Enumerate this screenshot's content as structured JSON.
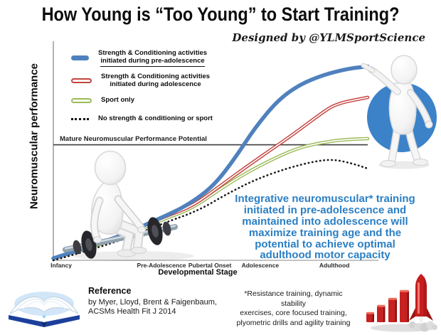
{
  "title": "How Young is “Too Young” to Start Training?",
  "credit": "Designed by @YLMSportScience",
  "legend": {
    "items": [
      {
        "line1": "Strength & Conditioning activities",
        "line2": "initiated during pre-adolescence"
      },
      {
        "line1": "Strength & Conditioning activities",
        "line2": "initiated during adolescence"
      },
      {
        "line1": "Sport only"
      },
      {
        "line1": "No strength & conditioning or sport"
      }
    ]
  },
  "annotation": "Integrative neuromuscular* training\ninitiated in pre-adolescence and\nmaintained into adolescence will\nmaximize training age and the\npotential to achieve optimal\nadulthood motor capacity",
  "footer": {
    "reference_heading": "Reference",
    "reference_text": "by Myer, Lloyd, Brent & Faigenbaum,\nACSMs Health Fit J 2014",
    "footnote": "*Resistance training, dynamic stability\nexercises, core focused training,\nplyometric drills and agility training"
  },
  "colors": {
    "series_blue": "#4f81bd",
    "series_red": "#c4443f",
    "series_green": "#9bbb59",
    "series_dotted": "#1a1a1a",
    "annotation_blue": "#2b7fc4",
    "figure_circle_blue": "#3b82c9",
    "reference_line": "#3c3c3c"
  },
  "chart_data": {
    "type": "line",
    "title": "How Young is “Too Young” to Start Training?",
    "xlabel": "Developmental Stage",
    "ylabel": "Neuromuscular performance",
    "x_categories": [
      "Infancy",
      "Pre-Adolescence",
      "Pubertal Onset",
      "Adolescence",
      "Adulthood"
    ],
    "x_positions": [
      2.5,
      34.4,
      49.8,
      65.8,
      89.4
    ],
    "xlim": [
      0,
      100
    ],
    "ylim": [
      0,
      100
    ],
    "grid": false,
    "legend_position": "top-left",
    "reference_line": {
      "label": "Mature Neuromuscular Performance Potential",
      "y": 56
    },
    "series": [
      {
        "name": "Strength & Conditioning activities initiated during pre-adolescence",
        "color": "#4f81bd",
        "style": "thick",
        "x": [
          0,
          17,
          35,
          43,
          51,
          58,
          64,
          71,
          78,
          86,
          94,
          100
        ],
        "y": [
          1,
          9,
          21,
          27,
          36,
          50,
          64,
          77,
          85,
          90,
          93,
          94
        ]
      },
      {
        "name": "Strength & Conditioning activities initiated during adolescence",
        "color": "#c4443f",
        "style": "outlined",
        "x": [
          0,
          17,
          35,
          44,
          53,
          62,
          71,
          78,
          85,
          90,
          100
        ],
        "y": [
          1,
          9,
          21,
          26,
          36,
          46,
          55.5,
          63,
          71,
          76,
          79
        ]
      },
      {
        "name": "Sport only",
        "color": "#9bbb59",
        "style": "outlined",
        "x": [
          0,
          17,
          35,
          44,
          53,
          62,
          71,
          78,
          85,
          92,
          100
        ],
        "y": [
          1,
          8,
          20,
          25,
          34.5,
          43,
          50,
          54.5,
          57,
          58.5,
          59
        ]
      },
      {
        "name": "No strength & conditioning or sport",
        "color": "#1a1a1a",
        "style": "dotted",
        "x": [
          0,
          17,
          35,
          46,
          55,
          64,
          74,
          83,
          89,
          95,
          100
        ],
        "y": [
          0,
          7,
          18,
          24,
          32,
          39,
          44.5,
          48,
          49,
          47,
          44.5
        ]
      }
    ]
  }
}
